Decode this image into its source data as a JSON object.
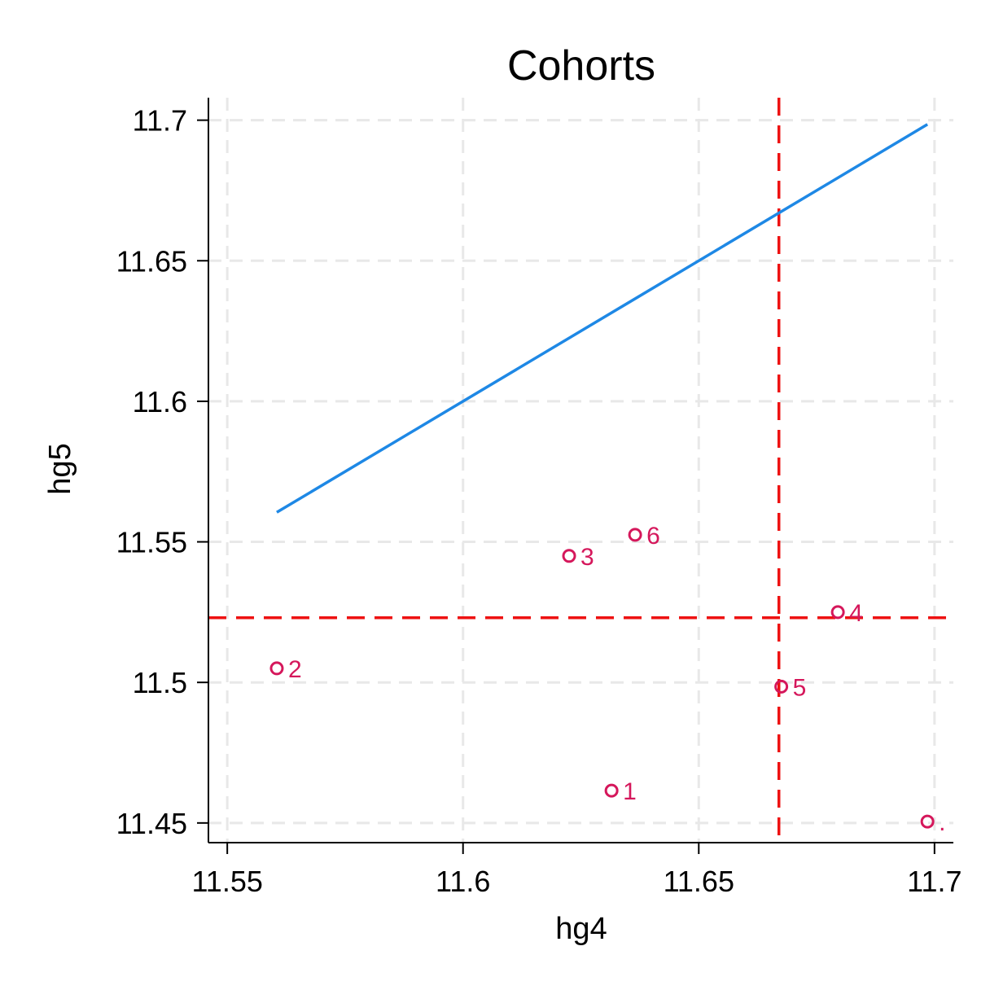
{
  "chart_data": {
    "type": "scatter",
    "title": "Cohorts",
    "xlabel": "hg4",
    "ylabel": "hg5",
    "xlim": [
      11.546,
      11.704
    ],
    "ylim": [
      11.443,
      11.708
    ],
    "xticks": [
      11.55,
      11.6,
      11.65,
      11.7
    ],
    "yticks": [
      11.45,
      11.5,
      11.55,
      11.6,
      11.65,
      11.7
    ],
    "xtick_labels": [
      "11.55",
      "11.6",
      "11.65",
      "11.7"
    ],
    "ytick_labels": [
      "11.45",
      "11.5",
      "11.55",
      "11.6",
      "11.65",
      "11.7"
    ],
    "grid": true,
    "points": [
      {
        "label": "1",
        "x": 11.6315,
        "y": 11.4615
      },
      {
        "label": "2",
        "x": 11.5605,
        "y": 11.505
      },
      {
        "label": "3",
        "x": 11.6225,
        "y": 11.545
      },
      {
        "label": "4",
        "x": 11.6795,
        "y": 11.525
      },
      {
        "label": "5",
        "x": 11.6675,
        "y": 11.4985
      },
      {
        "label": "6",
        "x": 11.6365,
        "y": 11.5525
      },
      {
        "label": ".",
        "x": 11.6985,
        "y": 11.4505
      }
    ],
    "line": {
      "x": [
        11.5605,
        11.6985
      ],
      "y": [
        11.5605,
        11.6985
      ]
    },
    "ref_lines": {
      "vertical_x": 11.667,
      "horizontal_y": 11.523
    },
    "colors": {
      "points": "#d5175b",
      "line": "#1e88e5",
      "ref": "#ee1111",
      "grid": "#e8e8e8",
      "axis": "#000000"
    }
  }
}
